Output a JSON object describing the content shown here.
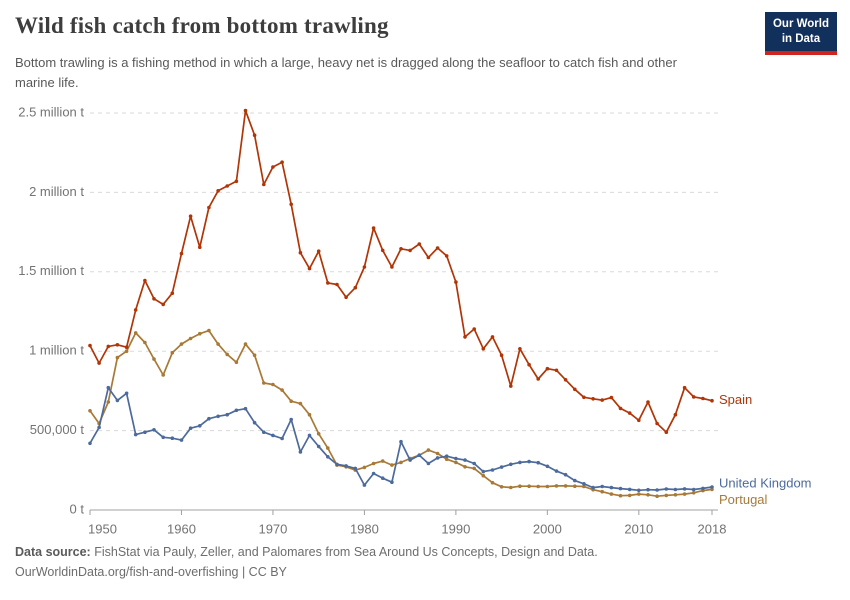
{
  "header": {
    "title": "Wild fish catch from bottom trawling",
    "subtitle": "Bottom trawling is a fishing method in which a large, heavy net is dragged along the seafloor to catch fish and other marine life.",
    "logo": {
      "line1": "Our World",
      "line2": "in Data"
    }
  },
  "footer": {
    "source_label": "Data source:",
    "source_text": "FishStat via Pauly, Zeller, and Palomares from Sea Around Us Concepts, Design and Data.",
    "note_line": "OurWorldinData.org/fish-and-overfishing | CC BY"
  },
  "chart_data": {
    "type": "line",
    "title": "Wild fish catch from bottom trawling",
    "unit": "tonnes",
    "year_start": 1950,
    "year_end": 2018,
    "ylim": [
      0,
      2500000
    ],
    "grid": "horizontal-dashed",
    "legend_position": "end-of-line-labels",
    "xticks": [
      1950,
      1960,
      1970,
      1980,
      1990,
      2000,
      2010,
      2018
    ],
    "yticks": [
      {
        "value": 0,
        "label": "0 t"
      },
      {
        "value": 500000,
        "label": "500,000 t"
      },
      {
        "value": 1000000,
        "label": "1 million t"
      },
      {
        "value": 1500000,
        "label": "1.5 million t"
      },
      {
        "value": 2000000,
        "label": "2 million t"
      },
      {
        "value": 2500000,
        "label": "2.5 million t"
      }
    ],
    "series": [
      {
        "name": "Portugal",
        "color": "#A87937",
        "label_dy": 11,
        "values": [
          625000,
          545000,
          680000,
          960000,
          1000000,
          1115000,
          1055000,
          950000,
          850000,
          990000,
          1045000,
          1080000,
          1110000,
          1130000,
          1045000,
          980000,
          930000,
          1045000,
          975000,
          800000,
          790000,
          755000,
          685000,
          670000,
          600000,
          480000,
          390000,
          283000,
          272000,
          251000,
          268000,
          293000,
          308000,
          283000,
          300000,
          324000,
          345000,
          377000,
          356000,
          320000,
          300000,
          272000,
          262000,
          216000,
          172000,
          146000,
          142000,
          150000,
          150000,
          148000,
          148000,
          152000,
          152000,
          150000,
          148000,
          128000,
          115000,
          100000,
          90000,
          92000,
          100000,
          96000,
          87000,
          92000,
          96000,
          100000,
          108000,
          122000,
          130000
        ]
      },
      {
        "name": "United Kingdom",
        "color": "#4C6A9C",
        "label_dy": -3,
        "values": [
          420000,
          520000,
          770000,
          690000,
          735000,
          475000,
          490000,
          505000,
          458000,
          452000,
          440000,
          515000,
          530000,
          575000,
          590000,
          600000,
          628000,
          638000,
          550000,
          490000,
          470000,
          450000,
          570000,
          365000,
          470000,
          400000,
          335000,
          287000,
          278000,
          262000,
          157000,
          230000,
          200000,
          175000,
          430000,
          314000,
          345000,
          293000,
          328000,
          339000,
          324000,
          314000,
          293000,
          242000,
          252000,
          270000,
          288000,
          300000,
          305000,
          298000,
          275000,
          245000,
          222000,
          185000,
          165000,
          141000,
          148000,
          141000,
          135000,
          130000,
          124000,
          128000,
          126000,
          132000,
          129000,
          133000,
          129000,
          136000,
          145000
        ]
      },
      {
        "name": "Spain",
        "color": "#B13507",
        "label_dy": 0,
        "values": [
          1035000,
          925000,
          1030000,
          1040000,
          1025000,
          1260000,
          1445000,
          1330000,
          1295000,
          1365000,
          1615000,
          1850000,
          1655000,
          1905000,
          2010000,
          2040000,
          2070000,
          2515000,
          2360000,
          2050000,
          2160000,
          2190000,
          1925000,
          1620000,
          1520000,
          1630000,
          1430000,
          1420000,
          1340000,
          1400000,
          1530000,
          1775000,
          1635000,
          1530000,
          1645000,
          1635000,
          1675000,
          1590000,
          1650000,
          1600000,
          1435000,
          1090000,
          1140000,
          1015000,
          1090000,
          975000,
          780000,
          1015000,
          915000,
          825000,
          890000,
          880000,
          820000,
          760000,
          710000,
          700000,
          692000,
          708000,
          640000,
          610000,
          565000,
          680000,
          545000,
          490000,
          600000,
          770000,
          712000,
          702000,
          688000
        ]
      }
    ]
  }
}
